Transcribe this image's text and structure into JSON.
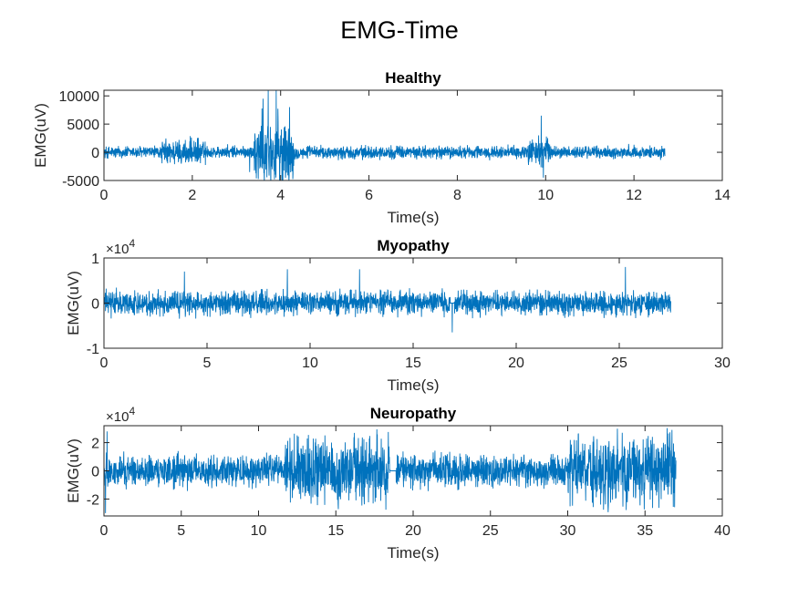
{
  "figure": {
    "title": "EMG-Time"
  },
  "chart_data": [
    {
      "type": "line",
      "title": "Healthy",
      "xlabel": "Time(s)",
      "ylabel": "EMG(uV)",
      "xlim": [
        0,
        14
      ],
      "ylim": [
        -5000,
        11000
      ],
      "xticks": [
        0,
        2,
        4,
        6,
        8,
        10,
        12,
        14
      ],
      "xtick_labels": [
        "0",
        "2",
        "4",
        "6",
        "8",
        "10",
        "12",
        "14"
      ],
      "yticks": [
        -5000,
        0,
        5000,
        10000
      ],
      "ytick_labels": [
        "-5000",
        "0",
        "5000",
        "10000"
      ],
      "exponent_label": "",
      "grid": false,
      "color": "#0072BD",
      "series": [
        {
          "data_end": 12.7,
          "base_amplitude": 1500,
          "bursts": [
            {
              "x": [
                1.3,
                2.3
              ],
              "amplitude": 3000
            },
            {
              "x": [
                3.4,
                4.3
              ],
              "amplitude": 8000
            },
            {
              "x": [
                9.6,
                10.1
              ],
              "amplitude": 3500
            }
          ],
          "spikes": [
            {
              "x": 3.72,
              "y": 11000
            },
            {
              "x": 3.9,
              "y": 11000
            },
            {
              "x": 4.05,
              "y": -5000
            },
            {
              "x": 3.6,
              "y": 9500
            },
            {
              "x": 4.2,
              "y": 8000
            },
            {
              "x": 9.95,
              "y": -4500
            },
            {
              "x": 9.9,
              "y": 6500
            },
            {
              "x": 3.3,
              "y": -3500
            }
          ]
        }
      ]
    },
    {
      "type": "line",
      "title": "Myopathy",
      "xlabel": "Time(s)",
      "ylabel": "EMG(uV)",
      "xlim": [
        0,
        30
      ],
      "ylim": [
        -10000,
        10000
      ],
      "xticks": [
        0,
        5,
        10,
        15,
        20,
        25,
        30
      ],
      "xtick_labels": [
        "0",
        "5",
        "10",
        "15",
        "20",
        "25",
        "30"
      ],
      "yticks": [
        -10000,
        0,
        10000
      ],
      "ytick_labels": [
        "-1",
        "0",
        "1"
      ],
      "exponent_label": "×10",
      "exponent_power": "4",
      "grid": false,
      "color": "#0072BD",
      "series": [
        {
          "data_end": 27.5,
          "base_amplitude": 3500,
          "bursts": [],
          "gap": [
            16.8,
            17.0
          ],
          "spikes": [
            {
              "x": 16.9,
              "y": -6500
            },
            {
              "x": 8.9,
              "y": 7500
            },
            {
              "x": 25.3,
              "y": 8000
            },
            {
              "x": 12.4,
              "y": 7500
            },
            {
              "x": 3.9,
              "y": 7000
            }
          ]
        }
      ]
    },
    {
      "type": "line",
      "title": "Neuropathy",
      "xlabel": "Time(s)",
      "ylabel": "EMG(uV)",
      "xlim": [
        0,
        40
      ],
      "ylim": [
        -32000,
        32000
      ],
      "xticks": [
        0,
        5,
        10,
        15,
        20,
        25,
        30,
        35,
        40
      ],
      "xtick_labels": [
        "0",
        "5",
        "10",
        "15",
        "20",
        "25",
        "30",
        "35",
        "40"
      ],
      "yticks": [
        -20000,
        0,
        20000
      ],
      "ytick_labels": [
        "-2",
        "0",
        "2"
      ],
      "exponent_label": "×10",
      "exponent_power": "4",
      "grid": false,
      "color": "#0072BD",
      "series": [
        {
          "data_end": 37,
          "base_amplitude": 15000,
          "bursts": [
            {
              "x": [
                11.7,
                18.5
              ],
              "amplitude": 32000
            },
            {
              "x": [
                30.0,
                37.0
              ],
              "amplitude": 32000
            }
          ],
          "gap": [
            18.5,
            18.9
          ],
          "spikes": [
            {
              "x": 0.2,
              "y": 28000
            },
            {
              "x": 0.1,
              "y": -30000
            }
          ]
        }
      ]
    }
  ]
}
